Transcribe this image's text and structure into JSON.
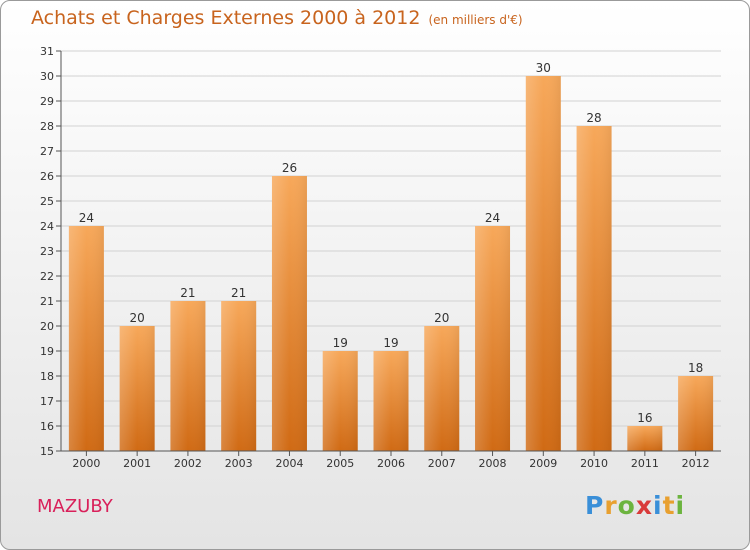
{
  "title": "Achats et Charges Externes 2000 à 2012",
  "unit": "(en milliers d'€)",
  "commune": "MAZUBY",
  "logo": {
    "p": "P",
    "r": "r",
    "o": "o",
    "x": "x",
    "i1": "i",
    "t": "t",
    "i2": "i"
  },
  "colors": {
    "bar_top": "#f7a85a",
    "bar_bottom": "#d06a14",
    "title": "#c8641e",
    "commune": "#d9205a"
  },
  "chart_data": {
    "type": "bar",
    "title": "Achats et Charges Externes 2000 à 2012",
    "subtitle": "(en milliers d'€)",
    "categories": [
      "2000",
      "2001",
      "2002",
      "2003",
      "2004",
      "2005",
      "2006",
      "2007",
      "2008",
      "2009",
      "2010",
      "2011",
      "2012"
    ],
    "values": [
      24,
      20,
      21,
      21,
      26,
      19,
      19,
      20,
      24,
      30,
      28,
      16,
      18
    ],
    "ylim": [
      15,
      31
    ],
    "yticks": [
      15,
      16,
      17,
      18,
      19,
      20,
      21,
      22,
      23,
      24,
      25,
      26,
      27,
      28,
      29,
      30,
      31
    ],
    "grid": true,
    "data_labels": true
  }
}
